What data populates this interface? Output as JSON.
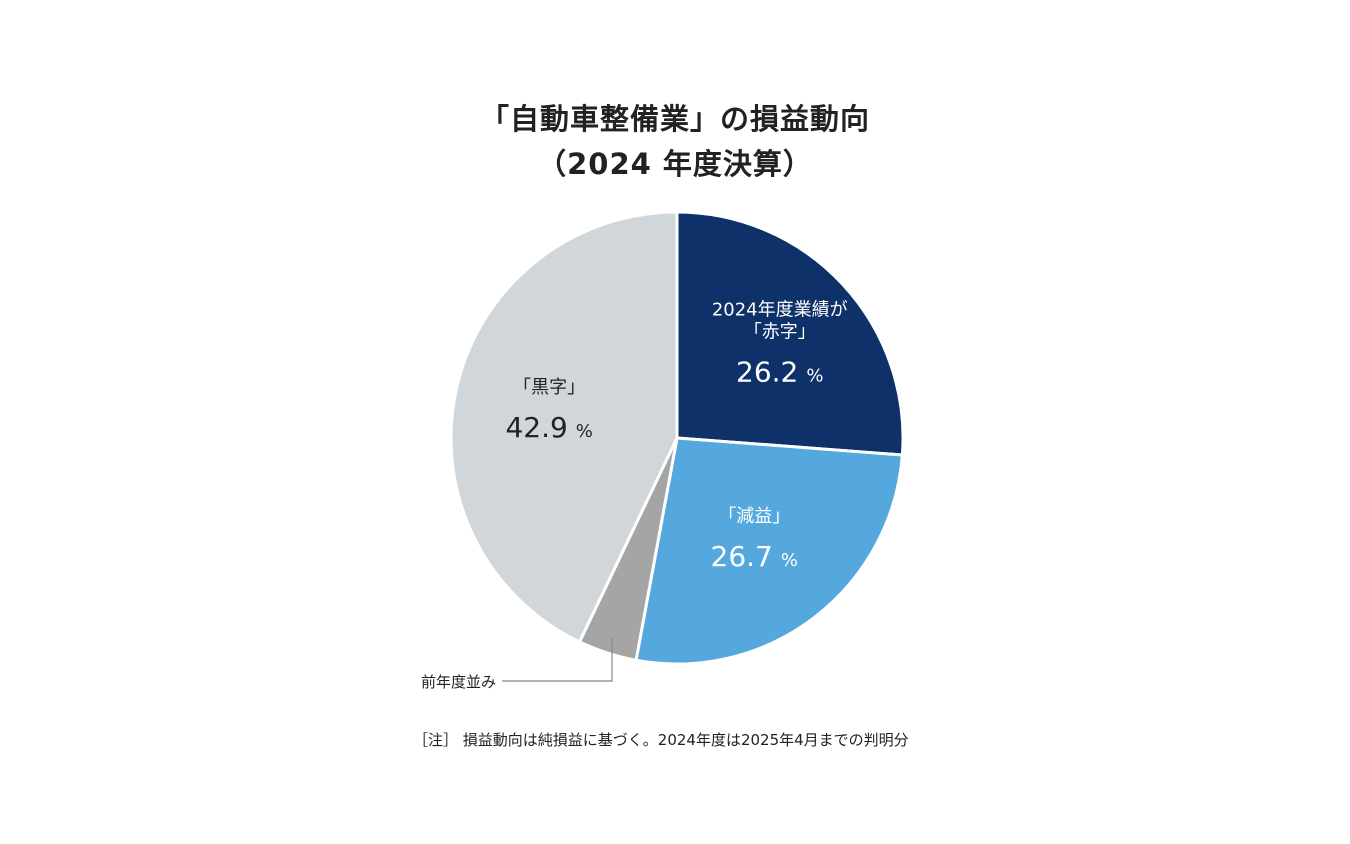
{
  "title_line1": "「自動車整備業」の損益動向",
  "title_line2": "（2024 年度決算）",
  "chart_data": {
    "type": "pie",
    "unit": "%",
    "slices": [
      {
        "label_lines": [
          "2024年度業績が",
          "「赤字」"
        ],
        "value": 26.2,
        "display": "26.2",
        "color": "#0d3168",
        "text_color": "#ffffff"
      },
      {
        "label_lines": [
          "「減益」"
        ],
        "value": 26.7,
        "display": "26.7",
        "color": "#55a8dd",
        "text_color": "#ffffff"
      },
      {
        "label_lines": [
          "前年度並み"
        ],
        "value": 4.2,
        "display": "",
        "color": "#a5a5a5",
        "text_color": "#222222"
      },
      {
        "label_lines": [
          "「黒字」"
        ],
        "value": 42.9,
        "display": "42.9",
        "color": "#d0d6da",
        "text_color": "#222222"
      }
    ]
  },
  "note": "［注］ 損益動向は純損益に基づく。2024年度は2025年4月までの判明分"
}
